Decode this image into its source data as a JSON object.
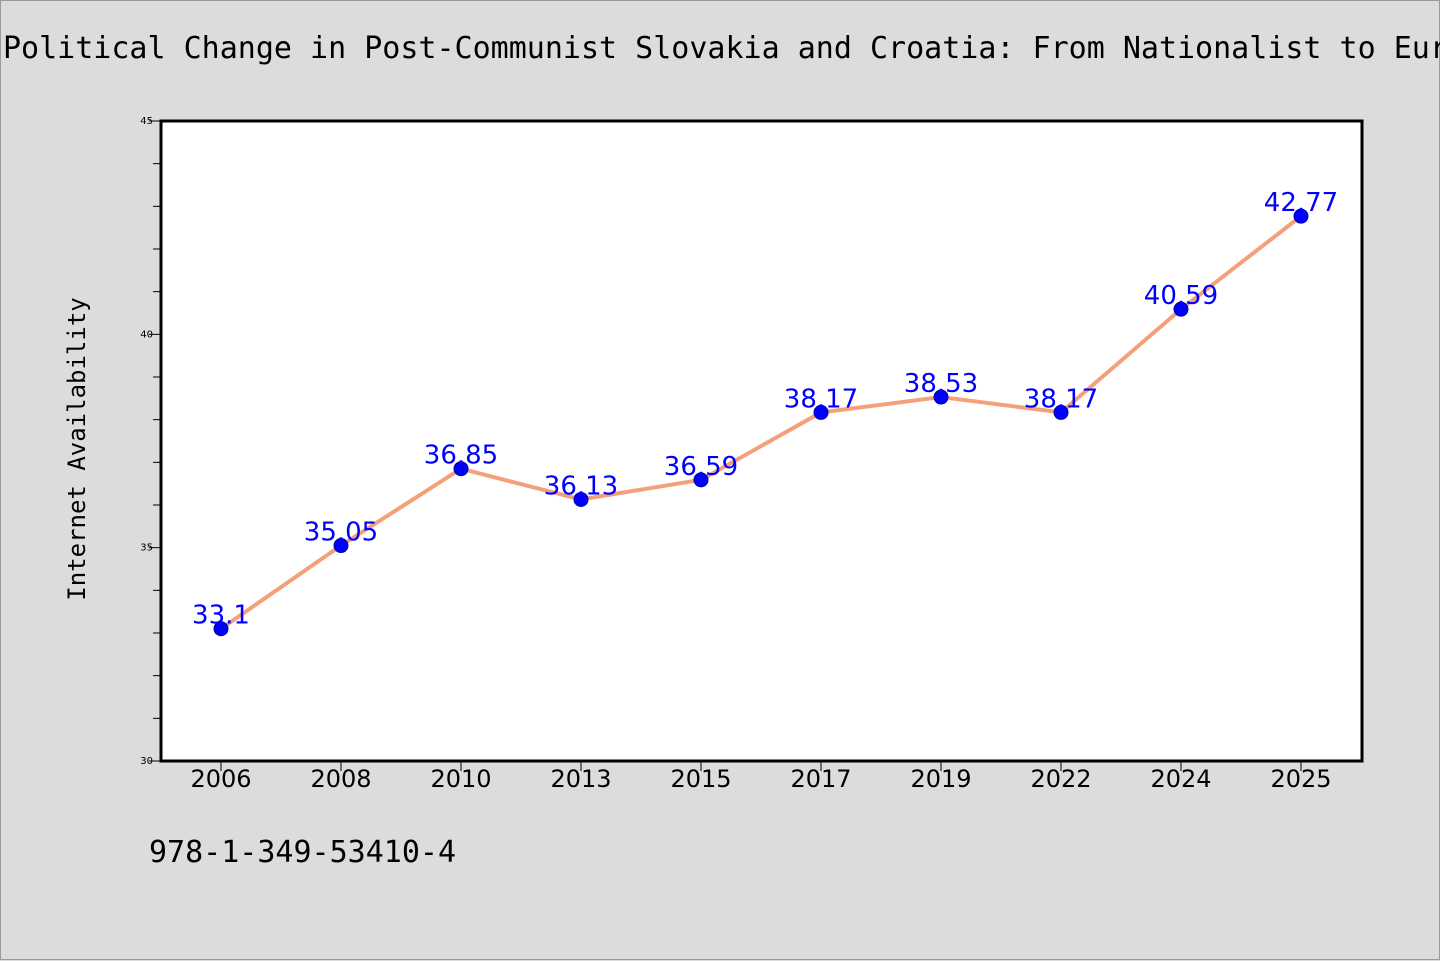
{
  "title": "Political Change in Post-Communist Slovakia and Croatia: From Nationalist to European Integration",
  "footer": "978-1-349-53410-4",
  "chart_data": {
    "type": "line",
    "title": "Political Change in Post-Communist Slovakia and Croatia: From Nationalist to European Integration",
    "xlabel": "",
    "ylabel": "Internet Availability",
    "categories": [
      "2006",
      "2008",
      "2010",
      "2013",
      "2015",
      "2017",
      "2019",
      "2022",
      "2024",
      "2025"
    ],
    "series": [
      {
        "values": [
          33.1,
          35.05,
          36.85,
          36.13,
          36.59,
          38.17,
          38.53,
          38.17,
          40.59,
          42.77
        ]
      }
    ],
    "data_labels": [
      "33.1",
      "35.05",
      "36.85",
      "36.13",
      "36.59",
      "38.17",
      "38.53",
      "38.17",
      "40.59",
      "42.77"
    ],
    "ylim": [
      30,
      45
    ],
    "yticks": [
      "30",
      "35",
      "40",
      "45"
    ],
    "grid": false,
    "legend": "none",
    "colors": {
      "line": "#f4a07a",
      "marker": "#0000ff",
      "data_label": "#0000ff",
      "background": "#dcdcdc",
      "plot_background": "#ffffff"
    }
  }
}
